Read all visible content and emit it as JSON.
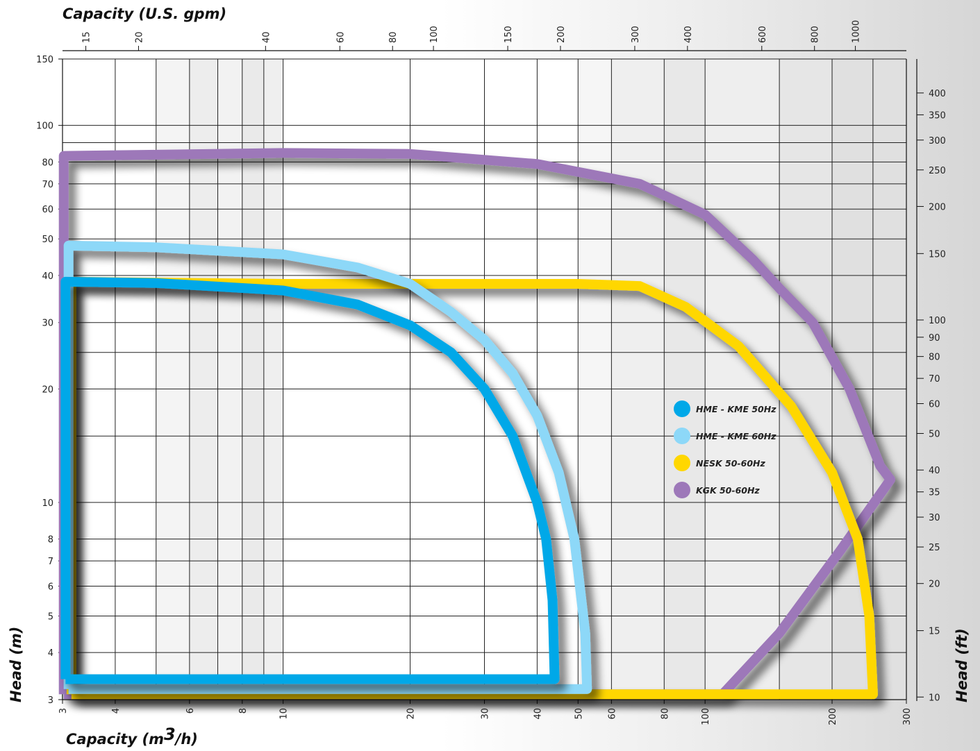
{
  "chart_data": {
    "type": "line",
    "title": "",
    "x_bottom": {
      "label_prefix": "Capacity (m",
      "label_sup": "3",
      "label_suffix": "/h)",
      "scale": "log",
      "range": [
        3,
        300
      ],
      "ticks": [
        3,
        4,
        6,
        8,
        10,
        20,
        30,
        40,
        50,
        60,
        80,
        100,
        200,
        300
      ],
      "minor_grid": [
        5,
        7,
        9,
        150,
        250
      ]
    },
    "x_top": {
      "label": "Capacity (U.S. gpm)",
      "scale": "log",
      "ticks": [
        15,
        20,
        40,
        60,
        80,
        100,
        150,
        200,
        300,
        400,
        600,
        800,
        1000
      ]
    },
    "y_left": {
      "label": "Head (m)",
      "scale": "log",
      "range": [
        3,
        150
      ],
      "ticks": [
        3,
        4,
        5,
        6,
        7,
        8,
        10,
        20,
        30,
        40,
        50,
        60,
        70,
        80,
        100,
        150
      ],
      "minor_grid": [
        15,
        25,
        90
      ]
    },
    "y_right": {
      "label": "Head (ft)",
      "scale": "log",
      "ticks": [
        10,
        15,
        20,
        25,
        30,
        35,
        40,
        50,
        60,
        70,
        80,
        90,
        100,
        150,
        200,
        250,
        300,
        350,
        400
      ]
    },
    "grid": true,
    "legend": {
      "position": "center-right"
    },
    "series": [
      {
        "name": "HME - KME 50Hz",
        "color": "#00a8e8",
        "points": [
          [
            3.05,
            3.4
          ],
          [
            3.05,
            38.5
          ],
          [
            5,
            38.2
          ],
          [
            10,
            36.5
          ],
          [
            15,
            33.5
          ],
          [
            20,
            29.5
          ],
          [
            25,
            25
          ],
          [
            30,
            20
          ],
          [
            35,
            15
          ],
          [
            40,
            10
          ],
          [
            42,
            8
          ],
          [
            43.5,
            5.5
          ],
          [
            44,
            3.4
          ],
          [
            3.05,
            3.4
          ]
        ]
      },
      {
        "name": "HME - KME 60Hz",
        "color": "#8dd8f8",
        "points": [
          [
            3.1,
            3.2
          ],
          [
            3.1,
            48
          ],
          [
            5,
            47.5
          ],
          [
            10,
            45.5
          ],
          [
            15,
            42
          ],
          [
            20,
            38
          ],
          [
            25,
            32
          ],
          [
            30,
            27
          ],
          [
            35,
            22
          ],
          [
            40,
            17
          ],
          [
            45,
            12
          ],
          [
            49,
            8
          ],
          [
            52,
            4.5
          ],
          [
            52.5,
            3.2
          ],
          [
            3.1,
            3.2
          ]
        ]
      },
      {
        "name": "NESK 50-60Hz",
        "color": "#ffd700",
        "points": [
          [
            3.15,
            3.1
          ],
          [
            3.15,
            38.5
          ],
          [
            10,
            38
          ],
          [
            50,
            38
          ],
          [
            70,
            37.5
          ],
          [
            90,
            33
          ],
          [
            120,
            26
          ],
          [
            160,
            18
          ],
          [
            200,
            12
          ],
          [
            230,
            8
          ],
          [
            245,
            5
          ],
          [
            250,
            3.1
          ],
          [
            3.15,
            3.1
          ]
        ]
      },
      {
        "name": "KGK 50-60Hz",
        "color": "#9d78b9",
        "points": [
          [
            3.02,
            3.1
          ],
          [
            3.02,
            83
          ],
          [
            10,
            84.5
          ],
          [
            20,
            84
          ],
          [
            40,
            79
          ],
          [
            70,
            70
          ],
          [
            100,
            58
          ],
          [
            130,
            44
          ],
          [
            150,
            37
          ],
          [
            180,
            30
          ],
          [
            220,
            20
          ],
          [
            260,
            12.5
          ],
          [
            275,
            11.5
          ],
          [
            210,
            7.5
          ],
          [
            150,
            4.5
          ],
          [
            110,
            3.1
          ],
          [
            3.02,
            3.1
          ]
        ]
      }
    ]
  }
}
